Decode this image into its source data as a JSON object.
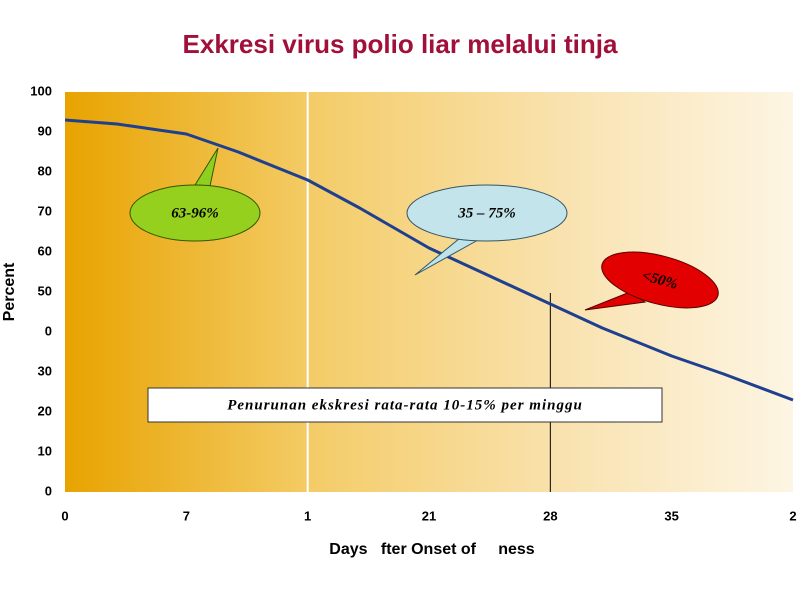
{
  "chart_data": {
    "type": "line",
    "title": "Exkresi virus polio liar melalui tinja",
    "y_label": "Percent",
    "x_label": "Days   fter Onset of     ness",
    "x": [
      0,
      3,
      7,
      10,
      14,
      17,
      21,
      24,
      28,
      31,
      35,
      38,
      42
    ],
    "values": [
      93,
      92,
      89.5,
      85,
      78,
      71,
      61,
      55,
      47,
      41,
      34,
      29.5,
      23
    ],
    "color": "#1f3f8f",
    "xlim": [
      0,
      42
    ],
    "xticks": [
      0,
      7,
      {
        "value": 14,
        "label": "1"
      },
      21,
      28,
      35,
      {
        "value": 42,
        "label": "2"
      }
    ],
    "ylim": [
      0,
      100
    ],
    "yticks": [
      0,
      10,
      20,
      30,
      {
        "value": 40,
        "label": "0"
      },
      50,
      60,
      70,
      80,
      90,
      100
    ],
    "annotations": [
      "63-96%",
      "35 – 75%",
      "<50%",
      "Penurunan ekskresi rata-rata 10-15% per minggu"
    ]
  }
}
